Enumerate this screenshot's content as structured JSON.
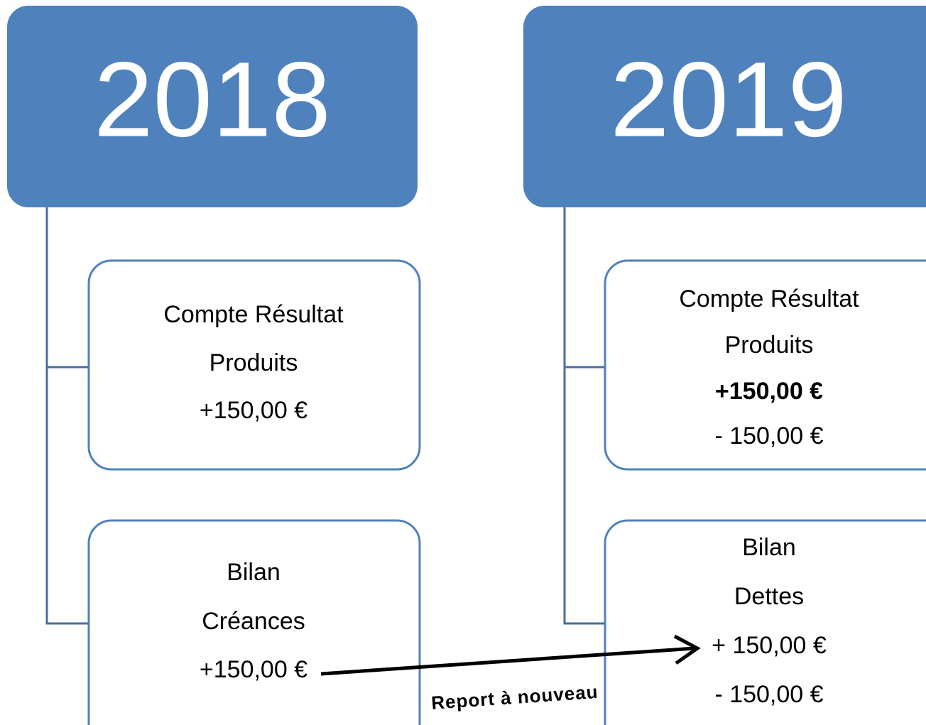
{
  "columns": [
    {
      "year": "2018",
      "boxes": [
        {
          "lines": [
            "Compte Résultat",
            "Produits",
            "+150,00 €"
          ]
        },
        {
          "lines": [
            "Bilan",
            "Créances",
            "+150,00 €"
          ]
        }
      ]
    },
    {
      "year": "2019",
      "boxes": [
        {
          "lines": [
            "Compte Résultat",
            "Produits",
            "+150,00 €",
            "- 150,00 €"
          ]
        },
        {
          "lines": [
            "Bilan",
            "Dettes",
            "+ 150,00 €",
            "- 150,00 €"
          ]
        }
      ]
    }
  ],
  "arrow": {
    "label": "Report à nouveau"
  }
}
